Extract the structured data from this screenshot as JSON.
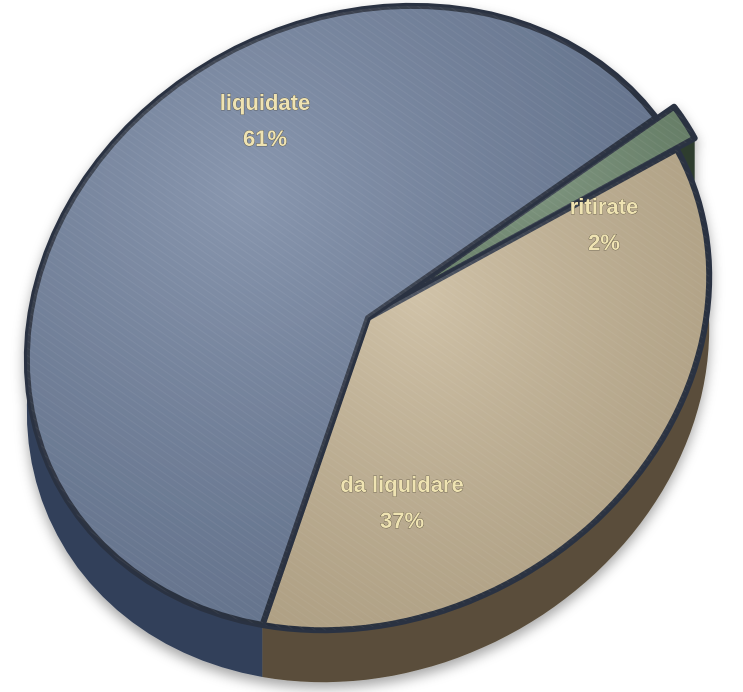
{
  "chart_data": {
    "type": "pie",
    "style": "3d-tilted",
    "legend": "none",
    "slices": [
      {
        "label": "liquidate",
        "value": 61,
        "display": "61%",
        "color": "#6f809d",
        "side": "#33415a"
      },
      {
        "label": "ritirate",
        "value": 2,
        "display": "2%",
        "color": "#6f8a70",
        "side": "#2f3e2f",
        "exploded": true
      },
      {
        "label": "da liquidare",
        "value": 37,
        "display": "37%",
        "color": "#c6b595",
        "side": "#5a4e3a"
      }
    ]
  }
}
